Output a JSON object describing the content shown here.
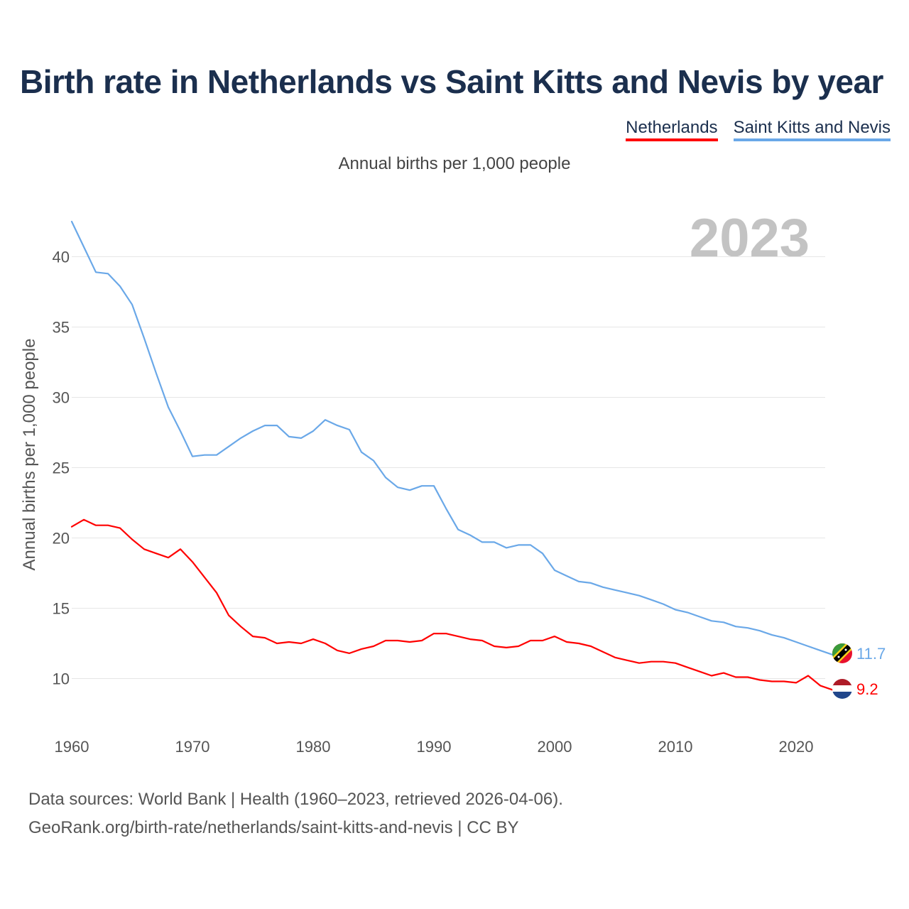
{
  "title": "Birth rate in Netherlands vs Saint Kitts and Nevis by year",
  "legend": {
    "netherlands": "Netherlands",
    "saint_kitts": "Saint Kitts and Nevis"
  },
  "subtitle": "Annual births per 1,000 people",
  "current_year": "2023",
  "y_axis_label": "Annual births per 1,000 people",
  "sources": {
    "line1": "Data sources: World Bank | Health (1960–2023, retrieved 2026-04-06).",
    "line2": "GeoRank.org/birth-rate/netherlands/saint-kitts-and-nevis | CC BY"
  },
  "colors": {
    "netherlands": "#ff0000",
    "saint_kitts": "#6aa8e8",
    "title": "#1b2f4e",
    "year": "#c3c3c3"
  },
  "chart_data": {
    "type": "line",
    "title": "Birth rate in Netherlands vs Saint Kitts and Nevis by year",
    "xlabel": "",
    "ylabel": "Annual births per 1,000 people",
    "xlim": [
      1960,
      2023
    ],
    "ylim": [
      7,
      42
    ],
    "x_ticks": [
      1960,
      1970,
      1980,
      1990,
      2000,
      2010,
      2020
    ],
    "y_ticks": [
      10,
      15,
      20,
      25,
      30,
      35,
      40
    ],
    "x": [
      1960,
      1961,
      1962,
      1963,
      1964,
      1965,
      1966,
      1967,
      1968,
      1969,
      1970,
      1971,
      1972,
      1973,
      1974,
      1975,
      1976,
      1977,
      1978,
      1979,
      1980,
      1981,
      1982,
      1983,
      1984,
      1985,
      1986,
      1987,
      1988,
      1989,
      1990,
      1991,
      1992,
      1993,
      1994,
      1995,
      1996,
      1997,
      1998,
      1999,
      2000,
      2001,
      2002,
      2003,
      2004,
      2005,
      2006,
      2007,
      2008,
      2009,
      2010,
      2011,
      2012,
      2013,
      2014,
      2015,
      2016,
      2017,
      2018,
      2019,
      2020,
      2021,
      2022,
      2023
    ],
    "series": [
      {
        "name": "Netherlands",
        "color": "#ff0000",
        "end_label": "9.2",
        "values": [
          20.8,
          21.3,
          20.9,
          20.9,
          20.7,
          19.9,
          19.2,
          18.9,
          18.6,
          19.2,
          18.3,
          17.2,
          16.1,
          14.5,
          13.7,
          13.0,
          12.9,
          12.5,
          12.6,
          12.5,
          12.8,
          12.5,
          12.0,
          11.8,
          12.1,
          12.3,
          12.7,
          12.7,
          12.6,
          12.7,
          13.2,
          13.2,
          13.0,
          12.8,
          12.7,
          12.3,
          12.2,
          12.3,
          12.7,
          12.7,
          13.0,
          12.6,
          12.5,
          12.3,
          11.9,
          11.5,
          11.3,
          11.1,
          11.2,
          11.2,
          11.1,
          10.8,
          10.5,
          10.2,
          10.4,
          10.1,
          10.1,
          9.9,
          9.8,
          9.8,
          9.7,
          10.2,
          9.5,
          9.2
        ]
      },
      {
        "name": "Saint Kitts and Nevis",
        "color": "#6aa8e8",
        "end_label": "11.7",
        "values": [
          42.5,
          40.7,
          38.9,
          38.8,
          37.9,
          36.6,
          34.2,
          31.7,
          29.3,
          27.6,
          25.8,
          25.9,
          25.9,
          26.5,
          27.1,
          27.6,
          28.0,
          28.0,
          27.2,
          27.1,
          27.6,
          28.4,
          28.0,
          27.7,
          26.1,
          25.5,
          24.3,
          23.6,
          23.4,
          23.7,
          23.7,
          22.1,
          20.6,
          20.2,
          19.7,
          19.7,
          19.3,
          19.5,
          19.5,
          18.9,
          17.7,
          17.3,
          16.9,
          16.8,
          16.5,
          16.3,
          16.1,
          15.9,
          15.6,
          15.3,
          14.9,
          14.7,
          14.4,
          14.1,
          14.0,
          13.7,
          13.6,
          13.4,
          13.1,
          12.9,
          12.6,
          12.3,
          12.0,
          11.7
        ]
      }
    ]
  }
}
